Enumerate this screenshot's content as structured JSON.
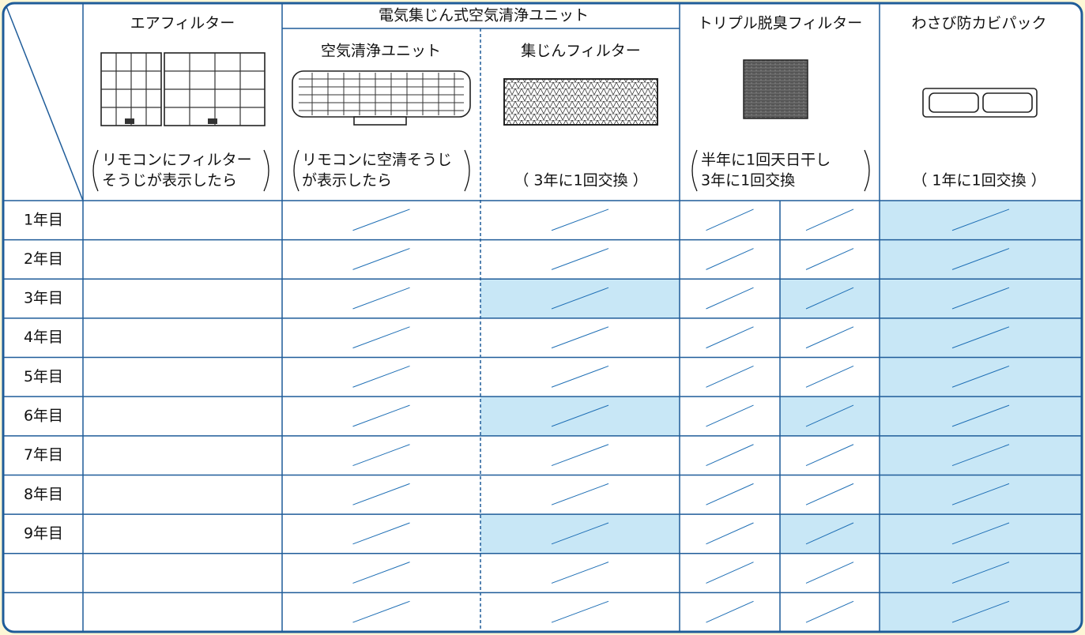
{
  "columns": {
    "air_filter": {
      "title": "エアフィルター",
      "note": [
        "リモコンにフィルター",
        "そうじが表示したら"
      ]
    },
    "unit_group": {
      "title": "電気集じん式空気清浄ユニット"
    },
    "purifier_unit": {
      "title": "空気清浄ユニット",
      "note": [
        "リモコンに空清そうじ",
        "が表示したら"
      ]
    },
    "dust_filter": {
      "title": "集じんフィルター",
      "note": "（ 3年に1回交換 ）"
    },
    "deodorizer": {
      "title": "トリプル脱臭フィルター",
      "note": [
        "半年に1回天日干し",
        "3年に1回交換"
      ]
    },
    "wasabi": {
      "title": "わさび防カビパック",
      "note": "（ 1年に1回交換 ）"
    }
  },
  "rows": [
    "1年目",
    "2年目",
    "3年目",
    "4年目",
    "5年目",
    "6年目",
    "7年目",
    "8年目",
    "9年目"
  ]
}
